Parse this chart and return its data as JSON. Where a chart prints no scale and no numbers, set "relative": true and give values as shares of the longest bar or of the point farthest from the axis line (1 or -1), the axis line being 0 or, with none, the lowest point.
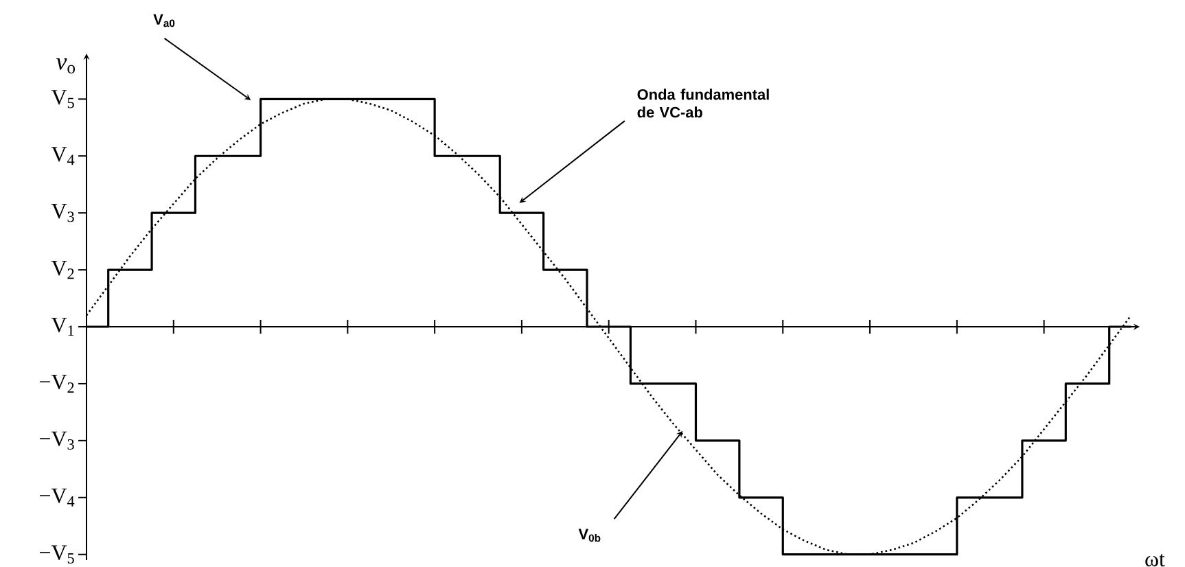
{
  "chart_data": {
    "type": "line",
    "relative": true,
    "xlabel": "ωt",
    "ylabel": "*v*$_{o}$",
    "categories": [
      null,
      null,
      null,
      null,
      null,
      null,
      null,
      null,
      null,
      null,
      null,
      null,
      null,
      null,
      null,
      null,
      null,
      null,
      null,
      null,
      null,
      null,
      null,
      null,
      null,
      null,
      null,
      null,
      null,
      null,
      null,
      null,
      null,
      null,
      null,
      null,
      null,
      null,
      null,
      null,
      null,
      null,
      null,
      null,
      null,
      null,
      null,
      null,
      null
    ],
    "grid": false,
    "marker": "none",
    "series": [
      {
        "type": "step",
        "color": "#000000",
        "line_style": "solid",
        "values": [
          0,
          0.25,
          0.25,
          0.5,
          0.5,
          0.75,
          0.75,
          0.75,
          1,
          1,
          1,
          1,
          1,
          1,
          1,
          1,
          0.75,
          0.75,
          0.75,
          0.5,
          0.5,
          0.25,
          0.25,
          0,
          0,
          -0.25,
          -0.25,
          -0.25,
          -0.5,
          -0.5,
          -0.75,
          -0.75,
          -1,
          -1,
          -1,
          -1,
          -1,
          -1,
          -1,
          -1,
          -0.75,
          -0.75,
          -0.75,
          -0.5,
          -0.5,
          -0.25,
          -0.25,
          0,
          0
        ]
      },
      {
        "type": "line",
        "color": "#000000",
        "line_style": "dotted",
        "values": [
          0.05,
          0.18,
          0.31,
          0.43,
          0.54,
          0.65,
          0.74,
          0.82,
          0.89,
          0.94,
          0.98,
          1,
          1,
          0.98,
          0.95,
          0.9,
          0.84,
          0.76,
          0.67,
          0.57,
          0.45,
          0.33,
          0.21,
          0.08,
          -0.05,
          -0.18,
          -0.31,
          -0.43,
          -0.54,
          -0.65,
          -0.74,
          -0.82,
          -0.89,
          -0.94,
          -0.98,
          -1,
          -1,
          -0.98,
          -0.95,
          -0.9,
          -0.84,
          -0.76,
          -0.67,
          -0.57,
          -0.45,
          -0.33,
          -0.21,
          -0.08,
          0.05
        ]
      }
    ],
    "annotations": [
      "V$_{1}$",
      "V$_{2}$",
      "V$_{3}$",
      "V$_{4}$",
      "V$_{5}$",
      "−V$_{2}$",
      "−V$_{3}$",
      "−V$_{4}$",
      "−V$_{5}$",
      "V$_{a0}$",
      "Onda fundamental de VC-ab",
      "V$_{0b}$"
    ]
  }
}
